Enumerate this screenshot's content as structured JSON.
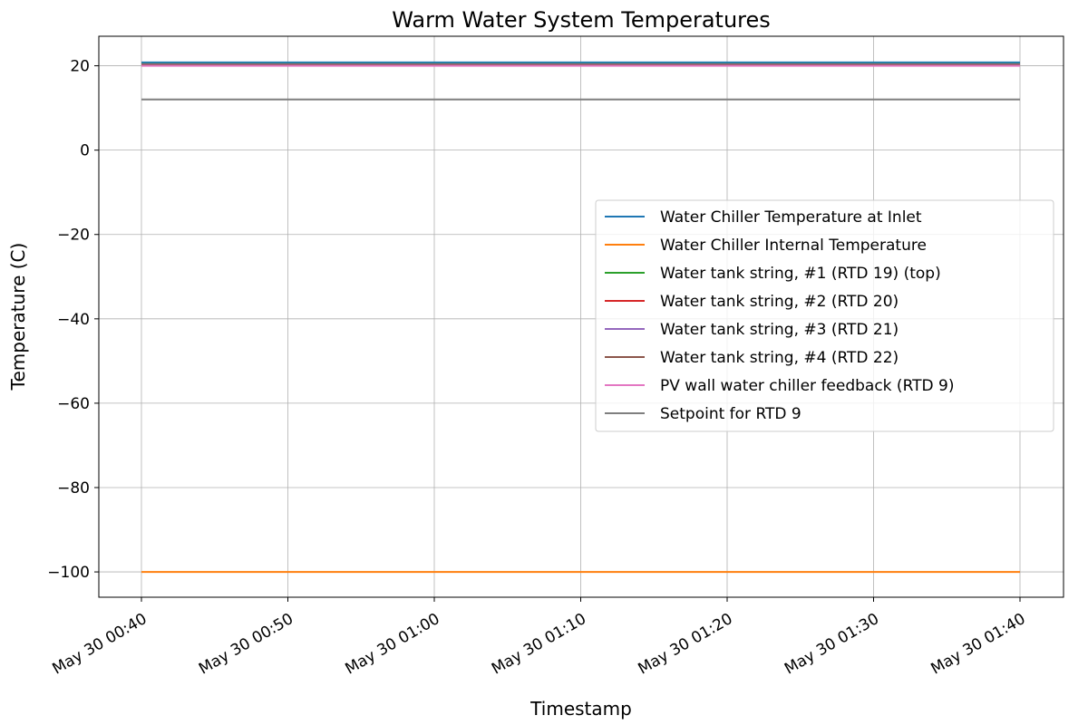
{
  "chart_data": {
    "type": "line",
    "title": "Warm Water System Temperatures",
    "xlabel": "Timestamp",
    "ylabel": "Temperature (C)",
    "x": [
      "May 30 00:40",
      "May 30 00:50",
      "May 30 01:00",
      "May 30 01:10",
      "May 30 01:20",
      "May 30 01:30",
      "May 30 01:40"
    ],
    "x_ticks": [
      "May 30 00:40",
      "May 30 00:50",
      "May 30 01:00",
      "May 30 01:10",
      "May 30 01:20",
      "May 30 01:30",
      "May 30 01:40"
    ],
    "y_ticks": [
      20,
      0,
      -20,
      -40,
      -60,
      -80,
      -100
    ],
    "ylim": [
      -106,
      27
    ],
    "grid": true,
    "legend_position": "center-right",
    "series": [
      {
        "name": "Water Chiller Temperature at Inlet",
        "color": "#1f77b4",
        "values": [
          20.8,
          20.8,
          20.8,
          20.8,
          20.8,
          20.8,
          20.8
        ]
      },
      {
        "name": "Water Chiller Internal Temperature",
        "color": "#ff7f0e",
        "values": [
          -100,
          -100,
          -100,
          -100,
          -100,
          -100,
          -100
        ]
      },
      {
        "name": "Water tank string, #1 (RTD 19) (top)",
        "color": "#2ca02c",
        "values": [
          20.4,
          20.4,
          20.4,
          20.4,
          20.4,
          20.4,
          20.4
        ]
      },
      {
        "name": "Water tank string, #2 (RTD 20)",
        "color": "#d62728",
        "values": [
          20.3,
          20.3,
          20.3,
          20.3,
          20.3,
          20.3,
          20.3
        ]
      },
      {
        "name": "Water tank string, #3 (RTD 21)",
        "color": "#9467bd",
        "values": [
          20.3,
          20.3,
          20.3,
          20.3,
          20.3,
          20.3,
          20.3
        ]
      },
      {
        "name": "Water tank string, #4 (RTD 22)",
        "color": "#8c564b",
        "values": [
          20.2,
          20.2,
          20.2,
          20.2,
          20.2,
          20.2,
          20.2
        ]
      },
      {
        "name": "PV wall water chiller feedback (RTD 9)",
        "color": "#e377c2",
        "values": [
          20.0,
          20.0,
          20.0,
          20.0,
          20.0,
          20.0,
          20.0
        ]
      },
      {
        "name": "Setpoint for RTD 9",
        "color": "#7f7f7f",
        "values": [
          12,
          12,
          12,
          12,
          12,
          12,
          12
        ]
      }
    ]
  }
}
